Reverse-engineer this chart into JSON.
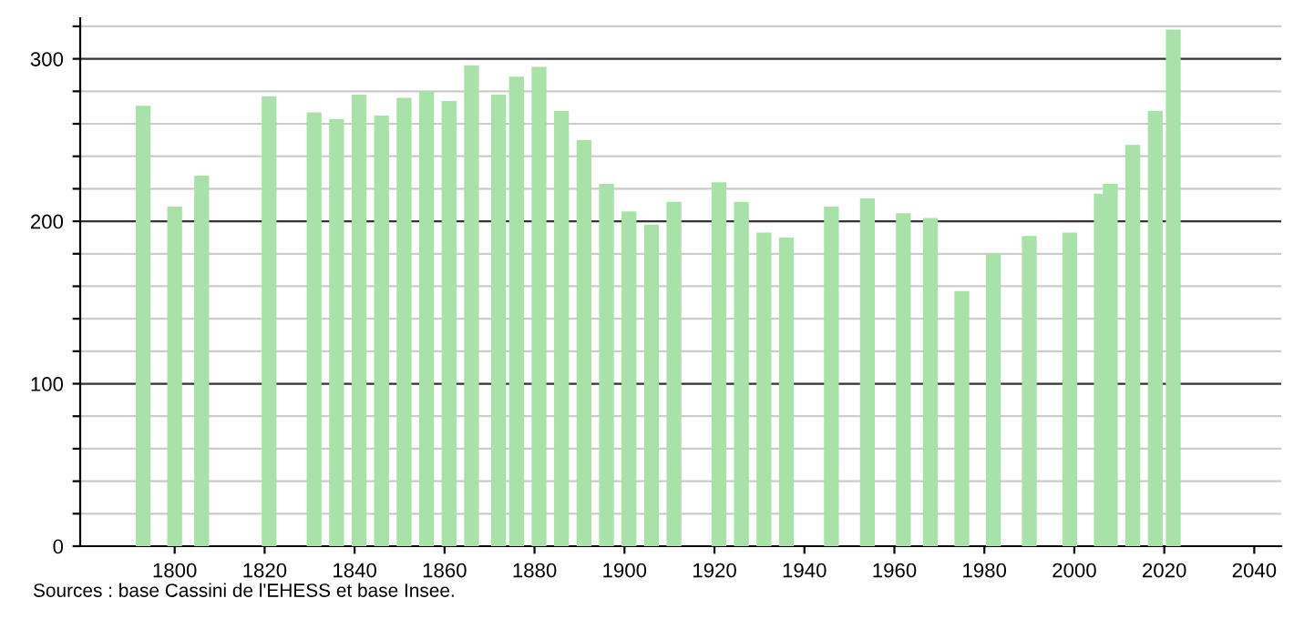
{
  "chart_data": {
    "type": "bar",
    "color": "#a8e2a8",
    "x": [
      1793,
      1800,
      1806,
      1821,
      1831,
      1836,
      1841,
      1846,
      1851,
      1856,
      1861,
      1866,
      1872,
      1876,
      1881,
      1886,
      1891,
      1896,
      1901,
      1906,
      1911,
      1921,
      1926,
      1931,
      1936,
      1946,
      1954,
      1962,
      1968,
      1975,
      1982,
      1990,
      1999,
      2006,
      2008,
      2013,
      2018,
      2022
    ],
    "values": [
      271,
      209,
      228,
      277,
      267,
      263,
      278,
      265,
      276,
      280,
      274,
      296,
      278,
      289,
      295,
      268,
      250,
      223,
      206,
      198,
      212,
      224,
      212,
      193,
      190,
      209,
      214,
      205,
      202,
      157,
      180,
      191,
      193,
      217,
      223,
      247,
      268,
      318
    ],
    "xlim": [
      1779,
      2046
    ],
    "xticks": [
      1800,
      1820,
      1840,
      1860,
      1880,
      1900,
      1920,
      1940,
      1960,
      1980,
      2000,
      2020,
      2040
    ],
    "ylim": [
      0,
      325
    ],
    "yticks": [
      0,
      {
        "value": 20,
        "label": null
      },
      {
        "value": 40,
        "label": null
      },
      {
        "value": 60,
        "label": null
      },
      {
        "value": 80,
        "label": null
      },
      100,
      {
        "value": 120,
        "label": null
      },
      {
        "value": 140,
        "label": null
      },
      {
        "value": 160,
        "label": null
      },
      {
        "value": 180,
        "label": null
      },
      200,
      {
        "value": 220,
        "label": null
      },
      {
        "value": 240,
        "label": null
      },
      {
        "value": 260,
        "label": null
      },
      {
        "value": 280,
        "label": null
      },
      300,
      {
        "value": 320,
        "label": null
      }
    ],
    "grid": "y",
    "annotations": [
      "Sources : base Cassini de l'EHESS et base Insee."
    ]
  }
}
